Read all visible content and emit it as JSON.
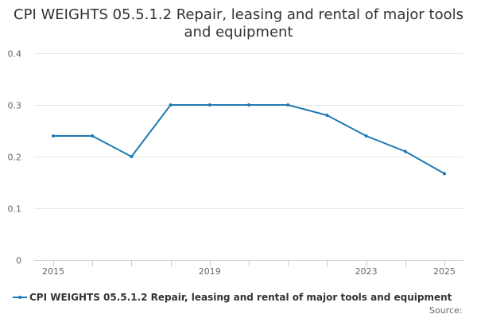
{
  "title": "CPI WEIGHTS 05.5.1.2 Repair, leasing and rental of major tools and equipment",
  "colors": {
    "series": "#1f7ab3",
    "grid": "#e6e6e6",
    "axis_text": "#666666",
    "title": "#333333"
  },
  "source_label": "Source:",
  "chart_data": {
    "type": "line",
    "title": "CPI WEIGHTS 05.5.1.2 Repair, leasing and rental of major tools and equipment",
    "xlabel": "",
    "ylabel": "",
    "x": [
      2015,
      2016,
      2017,
      2018,
      2019,
      2020,
      2021,
      2022,
      2023,
      2024,
      2025
    ],
    "x_tick_labels": [
      "2015",
      "2019",
      "2023",
      "2025"
    ],
    "ylim": [
      0,
      0.4
    ],
    "y_ticks": [
      0,
      0.1,
      0.2,
      0.3,
      0.4
    ],
    "y_tick_labels": [
      "0",
      "0.1",
      "0.2",
      "0.3",
      "0.4"
    ],
    "grid": true,
    "legend_position": "bottom",
    "series": [
      {
        "name": "CPI WEIGHTS 05.5.1.2 Repair, leasing and rental of major tools and equipment",
        "values": [
          0.24,
          0.24,
          0.2,
          0.3,
          0.3,
          0.3,
          0.3,
          0.28,
          0.24,
          0.21,
          0.167
        ]
      }
    ]
  }
}
